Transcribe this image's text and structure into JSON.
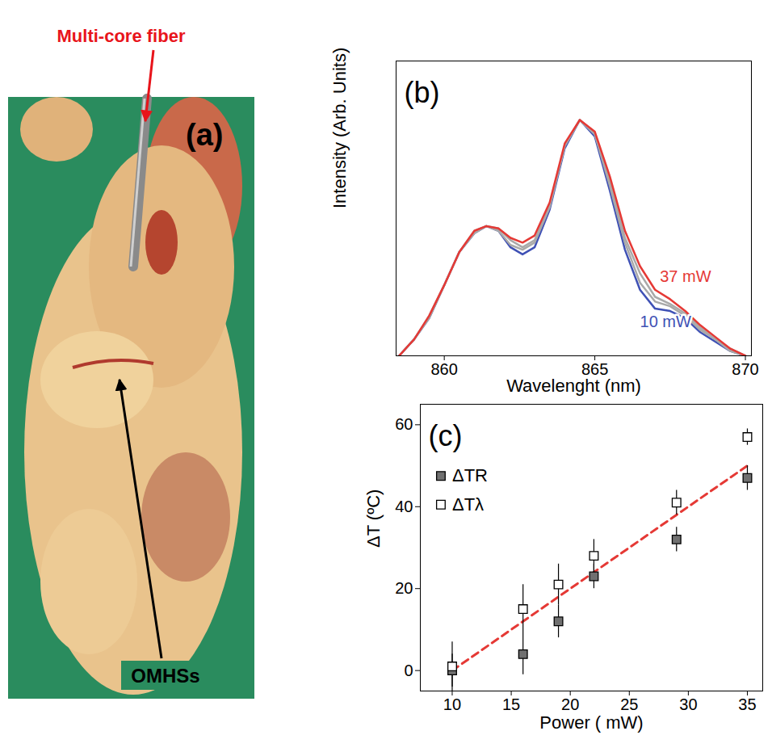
{
  "photo_panel": {
    "panel_label": "(a)",
    "annotations": [
      {
        "text": "Multi-core fiber",
        "color": "#e8141b"
      },
      {
        "text": "OMHSs",
        "color": "#000000"
      }
    ]
  },
  "chart_data": [
    {
      "type": "line",
      "panel_label": "(b)",
      "xlabel": "Wavelenght (nm)",
      "ylabel": "Intensity (Arb. Units)",
      "x": [
        858.5,
        859,
        859.5,
        860,
        860.5,
        861,
        861.4,
        861.8,
        862.2,
        862.6,
        863,
        863.5,
        864,
        864.5,
        865,
        865.5,
        866,
        866.5,
        867,
        867.5,
        868,
        868.5,
        869,
        869.5,
        870
      ],
      "xlim": [
        858.4,
        870.2
      ],
      "xticks": [
        860,
        865,
        870
      ],
      "ylim": [
        0,
        1.25
      ],
      "tick_labels": "x",
      "series": [
        {
          "name": "10 mW",
          "color": "#3f51b5",
          "values": [
            0,
            0.07,
            0.16,
            0.3,
            0.44,
            0.52,
            0.55,
            0.53,
            0.46,
            0.43,
            0.46,
            0.62,
            0.88,
            1.0,
            0.93,
            0.7,
            0.45,
            0.28,
            0.2,
            0.19,
            0.16,
            0.1,
            0.06,
            0.02,
            0
          ]
        },
        {
          "color": "#a9a9a9",
          "values": [
            0,
            0.07,
            0.16,
            0.3,
            0.44,
            0.52,
            0.55,
            0.53,
            0.47,
            0.45,
            0.48,
            0.63,
            0.89,
            1.0,
            0.94,
            0.72,
            0.48,
            0.31,
            0.23,
            0.21,
            0.17,
            0.11,
            0.07,
            0.02,
            0
          ]
        },
        {
          "color": "#a9a9a9",
          "values": [
            0,
            0.07,
            0.17,
            0.3,
            0.44,
            0.53,
            0.55,
            0.54,
            0.49,
            0.46,
            0.49,
            0.64,
            0.89,
            1.0,
            0.94,
            0.74,
            0.5,
            0.35,
            0.25,
            0.22,
            0.18,
            0.12,
            0.07,
            0.03,
            0
          ]
        },
        {
          "name": "37 mW",
          "color": "#e53935",
          "values": [
            0,
            0.07,
            0.17,
            0.3,
            0.44,
            0.53,
            0.55,
            0.54,
            0.5,
            0.48,
            0.51,
            0.65,
            0.9,
            1.0,
            0.95,
            0.76,
            0.53,
            0.38,
            0.28,
            0.24,
            0.19,
            0.13,
            0.08,
            0.03,
            0
          ]
        }
      ]
    },
    {
      "type": "scatter",
      "panel_label": "(c)",
      "xlabel": "Power ( mW)",
      "ylabel": "ΔT (ºC)",
      "x": [
        10,
        16,
        19,
        22,
        29,
        35
      ],
      "xlim": [
        7.3,
        36.3
      ],
      "xticks": [
        10,
        15,
        20,
        25,
        30,
        35
      ],
      "ylim": [
        -5,
        65
      ],
      "yticks": [
        0,
        20,
        40,
        60
      ],
      "legend": "top-left",
      "series": [
        {
          "name": "ΔTR",
          "color": "#707070",
          "marker": "square",
          "values": [
            0,
            4,
            12,
            23,
            32,
            47
          ],
          "errors": [
            4,
            5,
            4,
            3,
            3,
            3
          ]
        },
        {
          "name": "ΔTλ",
          "color": "#ffffff",
          "marker": "open_square",
          "values": [
            1,
            15,
            21,
            28,
            41,
            57
          ],
          "errors": [
            6,
            6,
            5,
            4,
            3,
            2
          ]
        },
        {
          "type": "line",
          "line_style": "dashed",
          "color": "#e53935",
          "x": [
            10,
            35
          ],
          "values": [
            0,
            50
          ]
        }
      ]
    }
  ]
}
